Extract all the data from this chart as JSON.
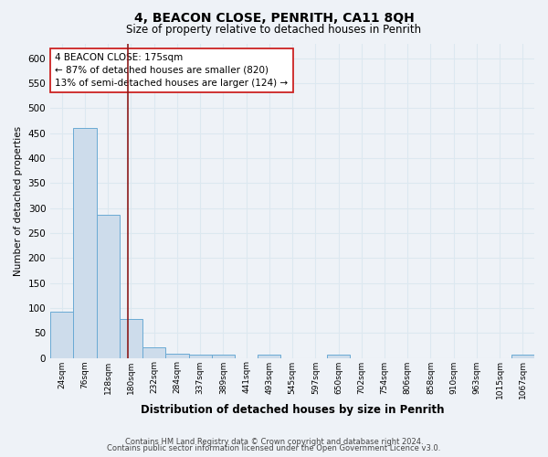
{
  "title": "4, BEACON CLOSE, PENRITH, CA11 8QH",
  "subtitle": "Size of property relative to detached houses in Penrith",
  "xlabel": "Distribution of detached houses by size in Penrith",
  "ylabel": "Number of detached properties",
  "bin_labels": [
    "24sqm",
    "76sqm",
    "128sqm",
    "180sqm",
    "232sqm",
    "284sqm",
    "337sqm",
    "389sqm",
    "441sqm",
    "493sqm",
    "545sqm",
    "597sqm",
    "650sqm",
    "702sqm",
    "754sqm",
    "806sqm",
    "858sqm",
    "910sqm",
    "963sqm",
    "1015sqm",
    "1067sqm"
  ],
  "bar_heights": [
    93,
    460,
    287,
    78,
    22,
    9,
    7,
    7,
    0,
    7,
    0,
    0,
    7,
    0,
    0,
    0,
    0,
    0,
    0,
    0,
    7
  ],
  "bar_color": "#cddceb",
  "bar_edge_color": "#6aaad4",
  "grid_color": "#dce8f0",
  "vline_x": 2.85,
  "vline_color": "#8b1a1a",
  "annotation_text": "4 BEACON CLOSE: 175sqm\n← 87% of detached houses are smaller (820)\n13% of semi-detached houses are larger (124) →",
  "annotation_box_color": "white",
  "annotation_box_edge": "#cc2222",
  "ylim": [
    0,
    630
  ],
  "yticks": [
    0,
    50,
    100,
    150,
    200,
    250,
    300,
    350,
    400,
    450,
    500,
    550,
    600
  ],
  "footer1": "Contains HM Land Registry data © Crown copyright and database right 2024.",
  "footer2": "Contains public sector information licensed under the Open Government Licence v3.0.",
  "background_color": "#eef2f7"
}
